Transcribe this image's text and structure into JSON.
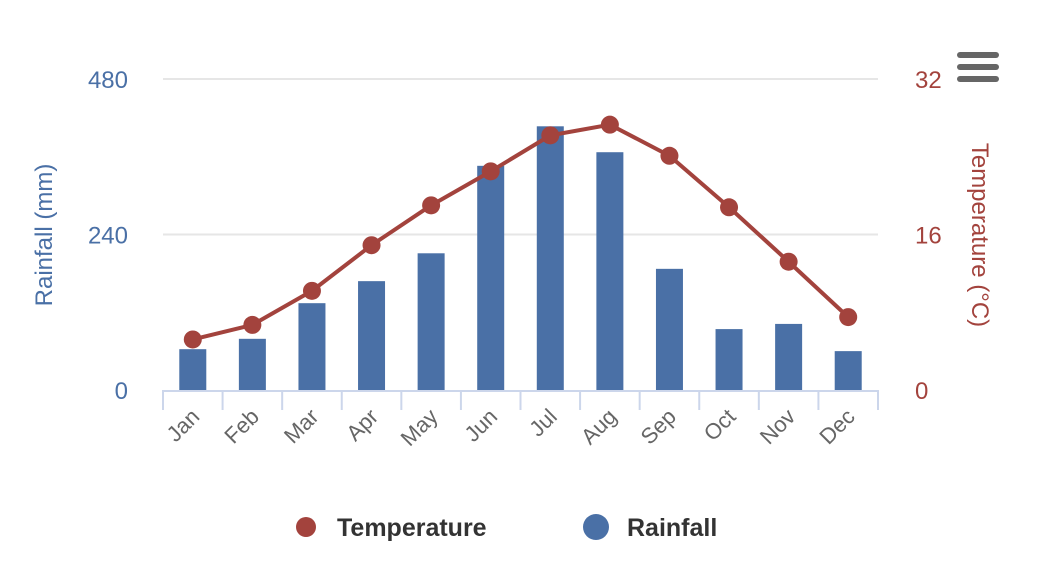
{
  "chart_data": {
    "type": "bar+line",
    "title": "",
    "categories": [
      "Jan",
      "Feb",
      "Mar",
      "Apr",
      "May",
      "Jun",
      "Jul",
      "Aug",
      "Sep",
      "Oct",
      "Nov",
      "Dec"
    ],
    "series": [
      {
        "name": "Rainfall",
        "type": "bar",
        "axis": "left",
        "color": "#4a70a6",
        "values": [
          63,
          79,
          134,
          168,
          211,
          346,
          407,
          367,
          187,
          94,
          102,
          60
        ]
      },
      {
        "name": "Temperature",
        "type": "line",
        "axis": "right",
        "color": "#a3433d",
        "values": [
          5.2,
          6.7,
          10.2,
          14.9,
          19.0,
          22.5,
          26.2,
          27.3,
          24.1,
          18.8,
          13.2,
          7.5
        ]
      }
    ],
    "y_left": {
      "label": "Rainfall (mm)",
      "range": [
        0,
        480
      ],
      "ticks": [
        "0",
        "240",
        "480"
      ],
      "color": "#4a70a6"
    },
    "y_right": {
      "label": "Temperature (°C)",
      "range": [
        0,
        32
      ],
      "ticks": [
        "0",
        "16",
        "32"
      ],
      "color": "#a3433d"
    },
    "grid": true,
    "legend": {
      "placement": "bottom",
      "items": [
        "Temperature",
        "Rainfall"
      ]
    }
  },
  "menu": {
    "icon": "hamburger-menu-icon"
  }
}
